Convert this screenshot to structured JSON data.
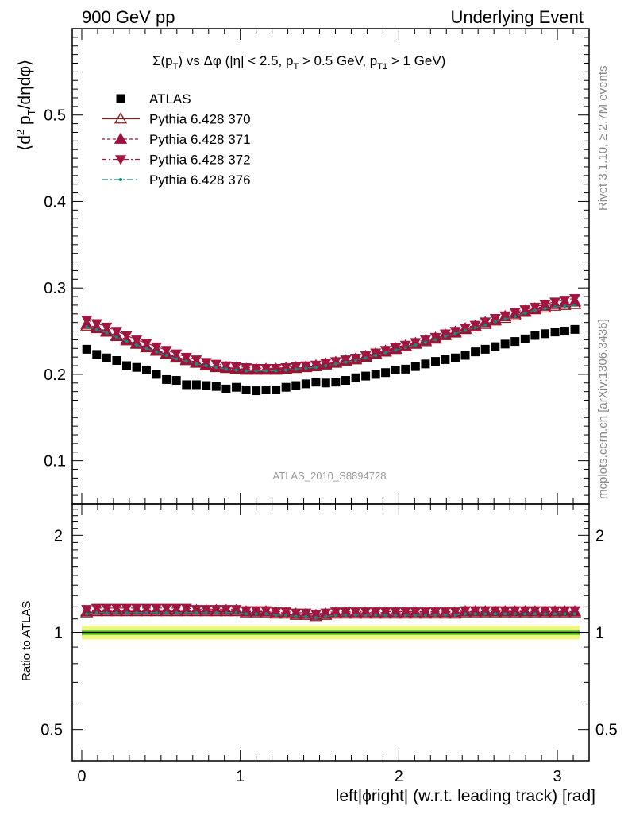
{
  "header": {
    "left": "900 GeV pp",
    "right": "Underlying Event"
  },
  "side_labels": {
    "rivet": "Rivet 3.1.10, ≥ 2.7M events",
    "mcplots": "mcplots.cern.ch [arXiv:1306.3436]"
  },
  "watermark": "ATLAS_2010_S8894728",
  "colors": {
    "atlas": "#000000",
    "p370": "#8b1a1a",
    "p371": "#a0103c",
    "p372": "#a0163e",
    "p376": "#1b8a7a",
    "band_inner": "#6fdc35",
    "band_outer": "#f0f580"
  },
  "chart_data": [
    {
      "type": "scatter",
      "panel": "main",
      "title": "Σ(pT) vs Δφ (|η| < 2.5, pT > 0.5 GeV, pT1 > 1 GeV)",
      "ylabel": "⟨d2 pT/dηdφ⟩",
      "xlabel": "",
      "xlim": [
        -0.06,
        3.2
      ],
      "ylim": [
        0.05,
        0.6
      ],
      "yticks": [
        0.1,
        0.2,
        0.3,
        0.4,
        0.5
      ],
      "legend_position": "top-left",
      "x": [
        0.031,
        0.094,
        0.157,
        0.22,
        0.283,
        0.346,
        0.408,
        0.471,
        0.534,
        0.597,
        0.66,
        0.723,
        0.785,
        0.848,
        0.911,
        0.974,
        1.037,
        1.1,
        1.162,
        1.225,
        1.288,
        1.351,
        1.414,
        1.477,
        1.539,
        1.602,
        1.665,
        1.728,
        1.791,
        1.854,
        1.916,
        1.979,
        2.042,
        2.105,
        2.168,
        2.231,
        2.293,
        2.356,
        2.419,
        2.482,
        2.545,
        2.608,
        2.67,
        2.733,
        2.796,
        2.859,
        2.922,
        2.985,
        3.047,
        3.11
      ],
      "series": [
        {
          "name": "ATLAS",
          "marker": "square",
          "values": [
            0.229,
            0.223,
            0.219,
            0.216,
            0.21,
            0.208,
            0.205,
            0.2,
            0.194,
            0.193,
            0.188,
            0.188,
            0.187,
            0.186,
            0.183,
            0.185,
            0.182,
            0.181,
            0.182,
            0.182,
            0.185,
            0.187,
            0.189,
            0.191,
            0.19,
            0.191,
            0.193,
            0.196,
            0.198,
            0.2,
            0.202,
            0.205,
            0.206,
            0.209,
            0.212,
            0.215,
            0.217,
            0.219,
            0.222,
            0.226,
            0.229,
            0.232,
            0.235,
            0.238,
            0.241,
            0.245,
            0.247,
            0.249,
            0.25,
            0.252
          ]
        },
        {
          "name": "Pythia 6.428 370",
          "marker": "triangle-up-open",
          "values": [
            0.256,
            0.253,
            0.249,
            0.244,
            0.239,
            0.235,
            0.231,
            0.227,
            0.223,
            0.219,
            0.216,
            0.213,
            0.21,
            0.208,
            0.207,
            0.206,
            0.205,
            0.205,
            0.205,
            0.205,
            0.206,
            0.207,
            0.208,
            0.209,
            0.211,
            0.213,
            0.215,
            0.217,
            0.22,
            0.223,
            0.226,
            0.229,
            0.232,
            0.235,
            0.238,
            0.241,
            0.245,
            0.248,
            0.252,
            0.255,
            0.258,
            0.262,
            0.265,
            0.268,
            0.272,
            0.275,
            0.277,
            0.279,
            0.28,
            0.281
          ]
        },
        {
          "name": "Pythia 6.428 371",
          "marker": "triangle-up",
          "values": [
            0.258,
            0.254,
            0.25,
            0.245,
            0.24,
            0.236,
            0.232,
            0.228,
            0.224,
            0.22,
            0.217,
            0.214,
            0.211,
            0.209,
            0.208,
            0.207,
            0.206,
            0.206,
            0.206,
            0.206,
            0.207,
            0.208,
            0.209,
            0.21,
            0.212,
            0.214,
            0.216,
            0.218,
            0.221,
            0.224,
            0.227,
            0.23,
            0.233,
            0.236,
            0.239,
            0.242,
            0.246,
            0.249,
            0.253,
            0.256,
            0.26,
            0.263,
            0.267,
            0.27,
            0.273,
            0.276,
            0.279,
            0.281,
            0.283,
            0.284
          ]
        },
        {
          "name": "Pythia 6.428 372",
          "marker": "triangle-down",
          "values": [
            0.263,
            0.259,
            0.255,
            0.25,
            0.245,
            0.24,
            0.236,
            0.232,
            0.228,
            0.224,
            0.22,
            0.217,
            0.214,
            0.212,
            0.21,
            0.209,
            0.208,
            0.207,
            0.207,
            0.207,
            0.208,
            0.209,
            0.21,
            0.211,
            0.213,
            0.215,
            0.217,
            0.219,
            0.222,
            0.225,
            0.228,
            0.231,
            0.234,
            0.237,
            0.24,
            0.243,
            0.247,
            0.25,
            0.254,
            0.257,
            0.261,
            0.265,
            0.268,
            0.272,
            0.275,
            0.278,
            0.281,
            0.284,
            0.286,
            0.288
          ]
        },
        {
          "name": "Pythia 6.428 376",
          "marker": "dot",
          "values": [
            0.255,
            0.252,
            0.248,
            0.243,
            0.238,
            0.234,
            0.23,
            0.226,
            0.222,
            0.218,
            0.215,
            0.212,
            0.21,
            0.208,
            0.206,
            0.205,
            0.204,
            0.204,
            0.204,
            0.204,
            0.205,
            0.206,
            0.207,
            0.208,
            0.21,
            0.212,
            0.214,
            0.216,
            0.219,
            0.222,
            0.225,
            0.228,
            0.231,
            0.234,
            0.237,
            0.24,
            0.244,
            0.247,
            0.251,
            0.254,
            0.257,
            0.261,
            0.264,
            0.267,
            0.271,
            0.274,
            0.276,
            0.278,
            0.279,
            0.28
          ]
        }
      ]
    },
    {
      "type": "scatter",
      "panel": "ratio",
      "ylabel": "Ratio to ATLAS",
      "xlabel": "left|ϕright| (w.r.t. leading track) [rad]",
      "xlim": [
        -0.06,
        3.2
      ],
      "ylim": [
        0.4,
        2.5
      ],
      "yscale": "log",
      "yticks": [
        0.5,
        1,
        2
      ],
      "xticks": [
        0,
        1,
        2,
        3
      ],
      "band": {
        "center": 1.0,
        "inner": 0.02,
        "outer": 0.05
      },
      "series": [
        {
          "name": "Pythia 6.428 370",
          "marker": "triangle-up-open",
          "values": [
            1.15,
            1.16,
            1.16,
            1.16,
            1.16,
            1.16,
            1.16,
            1.16,
            1.16,
            1.16,
            1.16,
            1.16,
            1.16,
            1.16,
            1.16,
            1.16,
            1.15,
            1.15,
            1.15,
            1.14,
            1.14,
            1.13,
            1.13,
            1.12,
            1.13,
            1.14,
            1.14,
            1.14,
            1.14,
            1.14,
            1.14,
            1.14,
            1.14,
            1.14,
            1.14,
            1.14,
            1.14,
            1.14,
            1.15,
            1.15,
            1.15,
            1.15,
            1.15,
            1.15,
            1.15,
            1.15,
            1.15,
            1.15,
            1.15,
            1.15
          ]
        },
        {
          "name": "Pythia 6.428 371",
          "marker": "triangle-up",
          "values": [
            1.16,
            1.17,
            1.17,
            1.17,
            1.17,
            1.17,
            1.17,
            1.17,
            1.17,
            1.17,
            1.17,
            1.17,
            1.17,
            1.17,
            1.17,
            1.17,
            1.16,
            1.16,
            1.16,
            1.15,
            1.15,
            1.14,
            1.14,
            1.13,
            1.14,
            1.15,
            1.15,
            1.15,
            1.15,
            1.15,
            1.15,
            1.15,
            1.15,
            1.15,
            1.15,
            1.15,
            1.15,
            1.15,
            1.16,
            1.16,
            1.16,
            1.16,
            1.16,
            1.16,
            1.16,
            1.16,
            1.16,
            1.16,
            1.16,
            1.16
          ]
        },
        {
          "name": "Pythia 6.428 372",
          "marker": "triangle-down",
          "values": [
            1.18,
            1.19,
            1.19,
            1.19,
            1.19,
            1.19,
            1.19,
            1.19,
            1.19,
            1.19,
            1.19,
            1.18,
            1.18,
            1.18,
            1.18,
            1.18,
            1.17,
            1.17,
            1.17,
            1.16,
            1.16,
            1.15,
            1.15,
            1.14,
            1.15,
            1.16,
            1.16,
            1.16,
            1.16,
            1.16,
            1.16,
            1.16,
            1.16,
            1.16,
            1.16,
            1.16,
            1.16,
            1.16,
            1.17,
            1.17,
            1.17,
            1.17,
            1.17,
            1.17,
            1.17,
            1.17,
            1.17,
            1.17,
            1.17,
            1.17
          ]
        },
        {
          "name": "Pythia 6.428 376",
          "marker": "dot",
          "values": [
            1.14,
            1.15,
            1.15,
            1.15,
            1.15,
            1.15,
            1.15,
            1.15,
            1.15,
            1.15,
            1.15,
            1.15,
            1.15,
            1.15,
            1.15,
            1.15,
            1.14,
            1.14,
            1.14,
            1.13,
            1.13,
            1.12,
            1.12,
            1.11,
            1.12,
            1.13,
            1.13,
            1.13,
            1.13,
            1.13,
            1.13,
            1.13,
            1.13,
            1.13,
            1.13,
            1.13,
            1.13,
            1.13,
            1.14,
            1.14,
            1.14,
            1.14,
            1.14,
            1.14,
            1.14,
            1.14,
            1.14,
            1.14,
            1.14,
            1.14
          ]
        }
      ]
    }
  ]
}
